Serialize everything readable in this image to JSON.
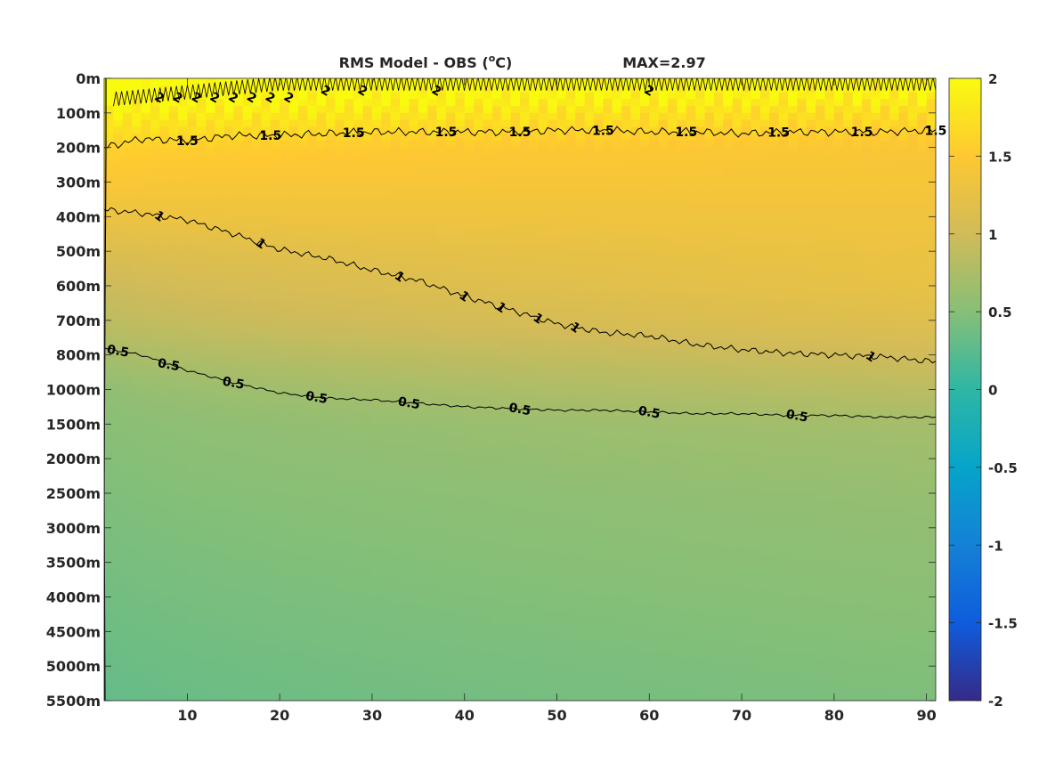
{
  "chart_data": {
    "type": "heatmap",
    "title": "RMS Model - OBS (",
    "title_unit_sup": "o",
    "title_unit_end": "C)",
    "max_label": "MAX=2.97",
    "x_ticks": [
      10,
      20,
      30,
      40,
      50,
      60,
      70,
      80,
      90
    ],
    "x_range": [
      1,
      91
    ],
    "y_ticks": [
      "0m",
      "100m",
      "200m",
      "300m",
      "400m",
      "500m",
      "600m",
      "700m",
      "800m",
      "1000m",
      "1500m",
      "2000m",
      "2500m",
      "3000m",
      "3500m",
      "4000m",
      "4500m",
      "5000m",
      "5500m"
    ],
    "colorbar": {
      "range": [
        -2,
        2
      ],
      "ticks": [
        "2",
        "1.5",
        "1",
        "0.5",
        "0",
        "-0.5",
        "-1",
        "-1.5",
        "-2"
      ],
      "colormap": "parula",
      "colors": [
        "#352a87",
        "#0f5cdd",
        "#1481d6",
        "#06a4ca",
        "#2eb7a4",
        "#87bf77",
        "#d1bb59",
        "#fec832",
        "#f9fb0e"
      ]
    },
    "contour_levels": [
      0.5,
      1,
      1.5,
      2
    ],
    "contour_labels": {
      "level_2": [
        "2",
        "2",
        "2",
        "2",
        "2",
        "2",
        "2",
        "2",
        "2",
        "2",
        "2",
        "2"
      ],
      "level_1_5": [
        "1.5",
        "1.5",
        "1.5",
        "1.5",
        "1.5",
        "1.5",
        "1.5",
        "1.5",
        "1.5",
        "1.5",
        "1.5",
        "1.5"
      ],
      "level_1": [
        "1",
        "1",
        "1",
        "1",
        "1",
        "1",
        "1",
        "1",
        "1",
        "1"
      ],
      "level_0_5": [
        "0.5",
        "0.5",
        "0.5",
        "0.5",
        "0.5",
        "0.5",
        "0.5",
        "0.5",
        "0.5"
      ]
    },
    "rms_profile_by_depth": {
      "depth_index": [
        0,
        1,
        2,
        3,
        4,
        5,
        6,
        7,
        8,
        9,
        10,
        12,
        14,
        16,
        18
      ],
      "rms_start": [
        2.2,
        1.9,
        1.6,
        1.45,
        1.3,
        1.1,
        0.95,
        0.85,
        0.7,
        0.55,
        0.5,
        0.45,
        0.4,
        0.35,
        0.3
      ],
      "rms_end": [
        2.1,
        1.7,
        1.45,
        1.4,
        1.35,
        1.3,
        1.25,
        1.15,
        1.0,
        0.85,
        0.7,
        0.6,
        0.55,
        0.5,
        0.45
      ]
    },
    "contour_depths": {
      "x": [
        1,
        5,
        10,
        15,
        20,
        25,
        30,
        35,
        40,
        45,
        50,
        55,
        60,
        65,
        70,
        75,
        80,
        85,
        91
      ],
      "level_1_5": [
        2.0,
        1.75,
        1.8,
        1.65,
        1.65,
        1.6,
        1.55,
        1.55,
        1.55,
        1.55,
        1.5,
        1.5,
        1.55,
        1.55,
        1.6,
        1.55,
        1.55,
        1.55,
        1.5
      ],
      "level_1": [
        3.8,
        3.9,
        4.1,
        4.5,
        4.95,
        5.2,
        5.55,
        5.85,
        6.3,
        6.7,
        7.1,
        7.35,
        7.45,
        7.7,
        7.85,
        7.95,
        8.0,
        8.05,
        8.2
      ],
      "level_0_5": [
        7.8,
        8.0,
        8.45,
        8.8,
        9.1,
        9.25,
        9.3,
        9.4,
        9.5,
        9.55,
        9.6,
        9.6,
        9.65,
        9.7,
        9.7,
        9.75,
        9.75,
        9.8,
        9.8
      ]
    }
  }
}
